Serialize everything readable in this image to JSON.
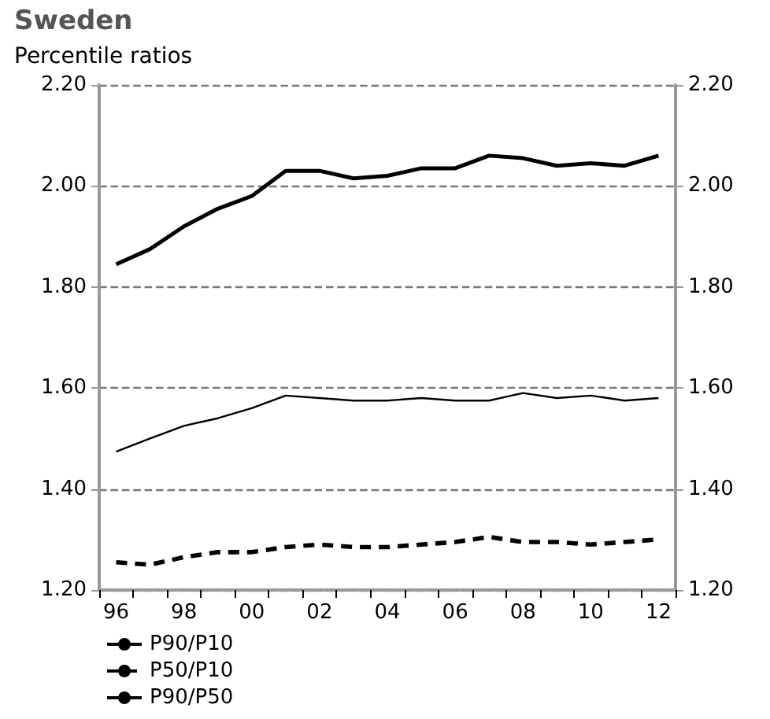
{
  "chart_data": {
    "type": "line",
    "title": "Sweden",
    "subtitle": "Percentile ratios",
    "categories": [
      "96",
      null,
      "98",
      null,
      "00",
      null,
      "02",
      null,
      "04",
      null,
      "06",
      null,
      "08",
      null,
      "10",
      null,
      "12"
    ],
    "series": [
      {
        "name": "P90/P10",
        "color": "#000000",
        "line_style": "solid",
        "values": [
          1.845,
          1.875,
          1.92,
          1.955,
          1.98,
          2.03,
          2.03,
          2.015,
          2.02,
          2.035,
          2.035,
          2.06,
          2.055,
          2.04,
          2.045,
          2.04,
          2.06
        ]
      },
      {
        "name": "P50/P10",
        "color": "#000000",
        "line_style": "dashed",
        "values": [
          1.255,
          1.25,
          1.265,
          1.275,
          1.275,
          1.285,
          1.29,
          1.285,
          1.285,
          1.29,
          1.295,
          1.305,
          1.295,
          1.295,
          1.29,
          1.295,
          1.3
        ]
      },
      {
        "name": "P90/P50",
        "color": "#000000",
        "line_style": "solid",
        "values": [
          1.474,
          1.5,
          1.525,
          1.54,
          1.56,
          1.585,
          1.58,
          1.575,
          1.575,
          1.58,
          1.575,
          1.575,
          1.59,
          1.58,
          1.585,
          1.575,
          1.58
        ]
      }
    ],
    "ylim": [
      1.2,
      2.2
    ],
    "yticks": [
      {
        "value": 1.2,
        "label": "1.20"
      },
      {
        "value": 1.4,
        "label": "1.40"
      },
      {
        "value": 1.6,
        "label": "1.60"
      },
      {
        "value": 1.8,
        "label": "1.80"
      },
      {
        "value": 2.0,
        "label": "2.00"
      },
      {
        "value": 2.2,
        "label": "2.20"
      }
    ],
    "y2lim": [
      1.2,
      2.2
    ],
    "y2ticks": [
      {
        "value": 1.2,
        "label": "1.20"
      },
      {
        "value": 1.4,
        "label": "1.40"
      },
      {
        "value": 1.6,
        "label": "1.60"
      },
      {
        "value": 1.8,
        "label": "1.80"
      },
      {
        "value": 2.0,
        "label": "2.00"
      },
      {
        "value": 2.2,
        "label": "2.20"
      }
    ],
    "grid": "y",
    "legend": "bottom left",
    "marker": "none"
  }
}
